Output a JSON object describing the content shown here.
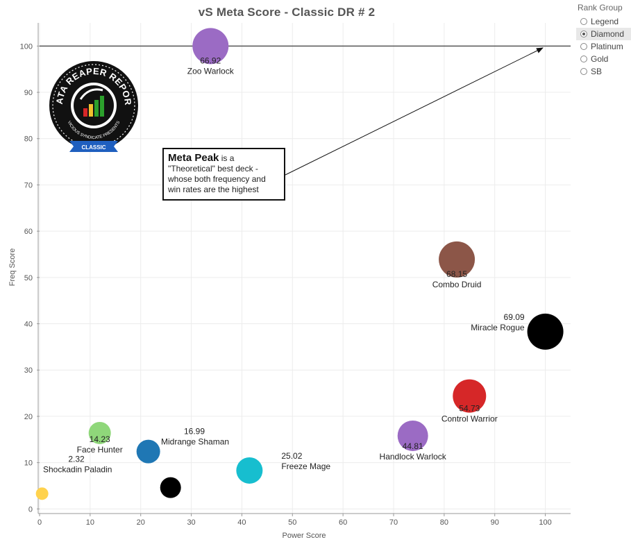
{
  "title": "vS Meta Score - Classic DR # 2",
  "rank_group": {
    "label": "Rank Group",
    "options": [
      "Legend",
      "Diamond",
      "Platinum",
      "Gold",
      "SB"
    ],
    "selected": "Diamond"
  },
  "callout": {
    "bold": "Meta Peak",
    "rest": " is a \"Theoretical\" best deck - whose both frequency and win rates are the highest"
  },
  "logo": {
    "top_text": "DATA REAPER REPORT",
    "bottom_text": "VICIOUS SYNDICATE PRESENTS",
    "ribbon_text": "CLASSIC"
  },
  "chart_data": {
    "type": "scatter",
    "title": "vS Meta Score - Classic DR # 2",
    "xlabel": "Power Score",
    "ylabel": "Freq Score",
    "xlim": [
      0,
      105
    ],
    "ylim": [
      -1,
      105
    ],
    "xticks": [
      0,
      10,
      20,
      30,
      40,
      50,
      60,
      70,
      80,
      90,
      100
    ],
    "yticks": [
      0,
      10,
      20,
      30,
      40,
      50,
      60,
      70,
      80,
      90,
      100
    ],
    "grid": true,
    "reference_line_y": 100,
    "points": [
      {
        "deck": "Zoo Warlock",
        "score": "66.92",
        "x": 33.8,
        "y": 100,
        "color": "#9b6bc4"
      },
      {
        "deck": "Combo Druid",
        "score": "68.15",
        "x": 82.5,
        "y": 53.9,
        "color": "#8c5648"
      },
      {
        "deck": "Miracle Rogue",
        "score": "69.09",
        "x": 100,
        "y": 38.3,
        "color": "#000000"
      },
      {
        "deck": "Control Warrior",
        "score": "54.73",
        "x": 85,
        "y": 24.4,
        "color": "#d62728"
      },
      {
        "deck": "Handlock Warlock",
        "score": "44.81",
        "x": 73.8,
        "y": 15.8,
        "color": "#9b6bc4"
      },
      {
        "deck": "Face Hunter",
        "score": "14.23",
        "x": 11.9,
        "y": 16.4,
        "color": "#8fd77a"
      },
      {
        "deck": "Midrange Shaman",
        "score": "16.99",
        "x": 21.5,
        "y": 12.4,
        "color": "#1f77b4"
      },
      {
        "deck": "Freeze Mage",
        "score": "25.02",
        "x": 41.5,
        "y": 8.3,
        "color": "#17becf"
      },
      {
        "deck": "",
        "score": "",
        "x": 25.9,
        "y": 4.6,
        "color": "#000000"
      },
      {
        "deck": "Shockadin Paladin",
        "score": "2.32",
        "x": 0.5,
        "y": 3.3,
        "color": "#ffd24d"
      }
    ]
  }
}
